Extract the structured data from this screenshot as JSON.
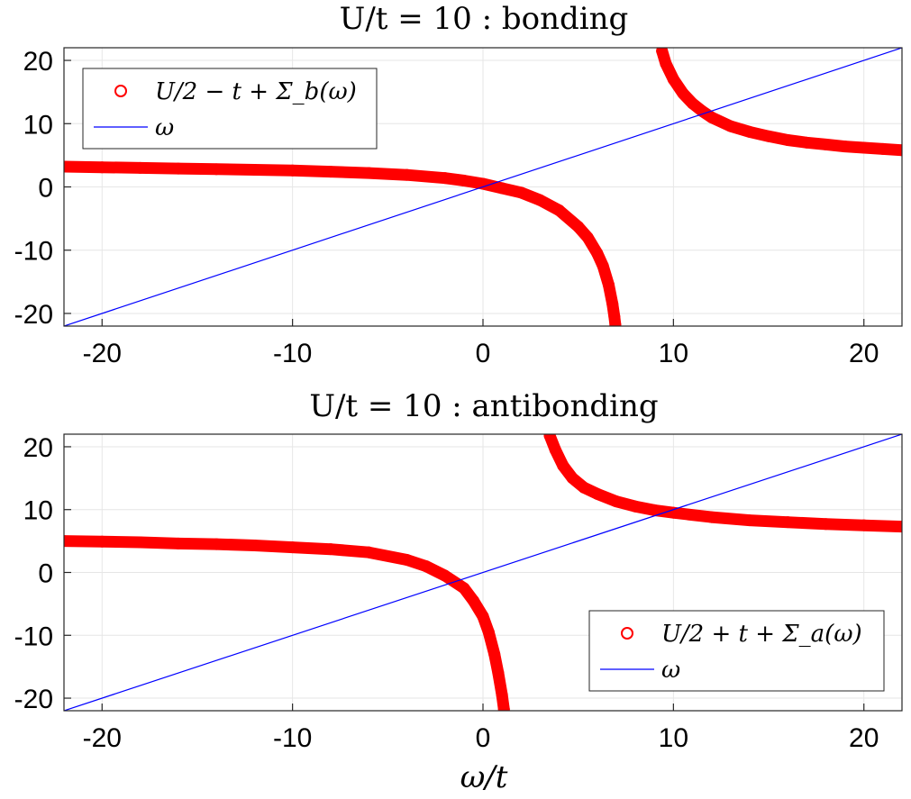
{
  "colors": {
    "self_energy": "#ff0000",
    "omega_line": "#0000ff",
    "grid": "#e6e6e6",
    "axes": "#262626"
  },
  "chart_data": [
    {
      "type": "scatter",
      "title": "U/t = 10 : bonding",
      "xlabel": "",
      "ylabel": "",
      "xlim": [
        -22,
        22
      ],
      "ylim": [
        -22,
        22
      ],
      "grid": true,
      "legend_position": "top-left",
      "xticks": [
        -20,
        -10,
        0,
        10,
        20
      ],
      "yticks": [
        -20,
        -10,
        0,
        10,
        20
      ],
      "xtick_labels": [
        "-20",
        "-10",
        "0",
        "10",
        "20"
      ],
      "ytick_labels": [
        "-20",
        "-10",
        "0",
        "10",
        "20"
      ],
      "series": [
        {
          "name": "U/2 − t + Σ_b(ω)",
          "kind": "markers",
          "color": "#ff0000",
          "branches": [
            {
              "x": [
                -22,
                -20,
                -18,
                -16,
                -14,
                -12,
                -10,
                -8,
                -6,
                -4,
                -2,
                -1,
                0,
                1,
                2,
                3,
                4,
                5,
                5.5,
                6,
                6.3,
                6.6,
                6.8,
                6.9,
                6.95
              ],
              "y": [
                3.2,
                3.1,
                3.0,
                2.9,
                2.8,
                2.7,
                2.6,
                2.4,
                2.2,
                1.9,
                1.4,
                1.0,
                0.5,
                -0.2,
                -0.9,
                -2.1,
                -3.7,
                -6.3,
                -8.0,
                -10.5,
                -12.5,
                -15.5,
                -18.5,
                -20.5,
                -21.8
              ]
            },
            {
              "x": [
                9.4,
                9.6,
                10,
                10.5,
                11,
                11.5,
                12,
                13,
                14,
                15,
                16,
                17,
                18,
                19,
                20,
                21,
                22
              ],
              "y": [
                21.5,
                19.5,
                17.0,
                14.8,
                13.2,
                12.0,
                11.0,
                9.6,
                8.7,
                8.0,
                7.4,
                7.0,
                6.7,
                6.4,
                6.2,
                6.0,
                5.8
              ]
            }
          ]
        },
        {
          "name": "ω",
          "kind": "line",
          "color": "#0000ff",
          "x": [
            -22,
            22
          ],
          "y": [
            -22,
            22
          ]
        }
      ]
    },
    {
      "type": "scatter",
      "title": "U/t = 10 : antibonding",
      "xlabel": "ω/t",
      "ylabel": "",
      "xlim": [
        -22,
        22
      ],
      "ylim": [
        -22,
        22
      ],
      "grid": true,
      "legend_position": "bottom-right",
      "xticks": [
        -20,
        -10,
        0,
        10,
        20
      ],
      "yticks": [
        -20,
        -10,
        0,
        10,
        20
      ],
      "xtick_labels": [
        "-20",
        "-10",
        "0",
        "10",
        "20"
      ],
      "ytick_labels": [
        "-20",
        "-10",
        "0",
        "10",
        "20"
      ],
      "series": [
        {
          "name": "U/2 + t + Σ_a(ω)",
          "kind": "markers",
          "color": "#ff0000",
          "branches": [
            {
              "x": [
                -22,
                -20,
                -18,
                -16,
                -14,
                -12,
                -10,
                -8,
                -6,
                -4,
                -3,
                -2,
                -1,
                -0.5,
                0,
                0.3,
                0.6,
                0.8,
                1.0,
                1.1
              ],
              "y": [
                5.0,
                4.9,
                4.8,
                4.6,
                4.5,
                4.3,
                4.0,
                3.7,
                3.2,
                2.0,
                1.0,
                -0.5,
                -2.5,
                -4.5,
                -7.0,
                -9.5,
                -13.0,
                -16.0,
                -19.5,
                -21.8
              ]
            },
            {
              "x": [
                3.5,
                3.8,
                4.2,
                4.7,
                5.3,
                6,
                7,
                8,
                9,
                10,
                12,
                14,
                16,
                18,
                20,
                22
              ],
              "y": [
                21.8,
                19.5,
                17.0,
                15.0,
                13.5,
                12.5,
                11.3,
                10.5,
                9.9,
                9.5,
                8.8,
                8.3,
                8.0,
                7.7,
                7.5,
                7.3
              ]
            }
          ]
        },
        {
          "name": "ω",
          "kind": "line",
          "color": "#0000ff",
          "x": [
            -22,
            22
          ],
          "y": [
            -22,
            22
          ]
        }
      ]
    }
  ]
}
